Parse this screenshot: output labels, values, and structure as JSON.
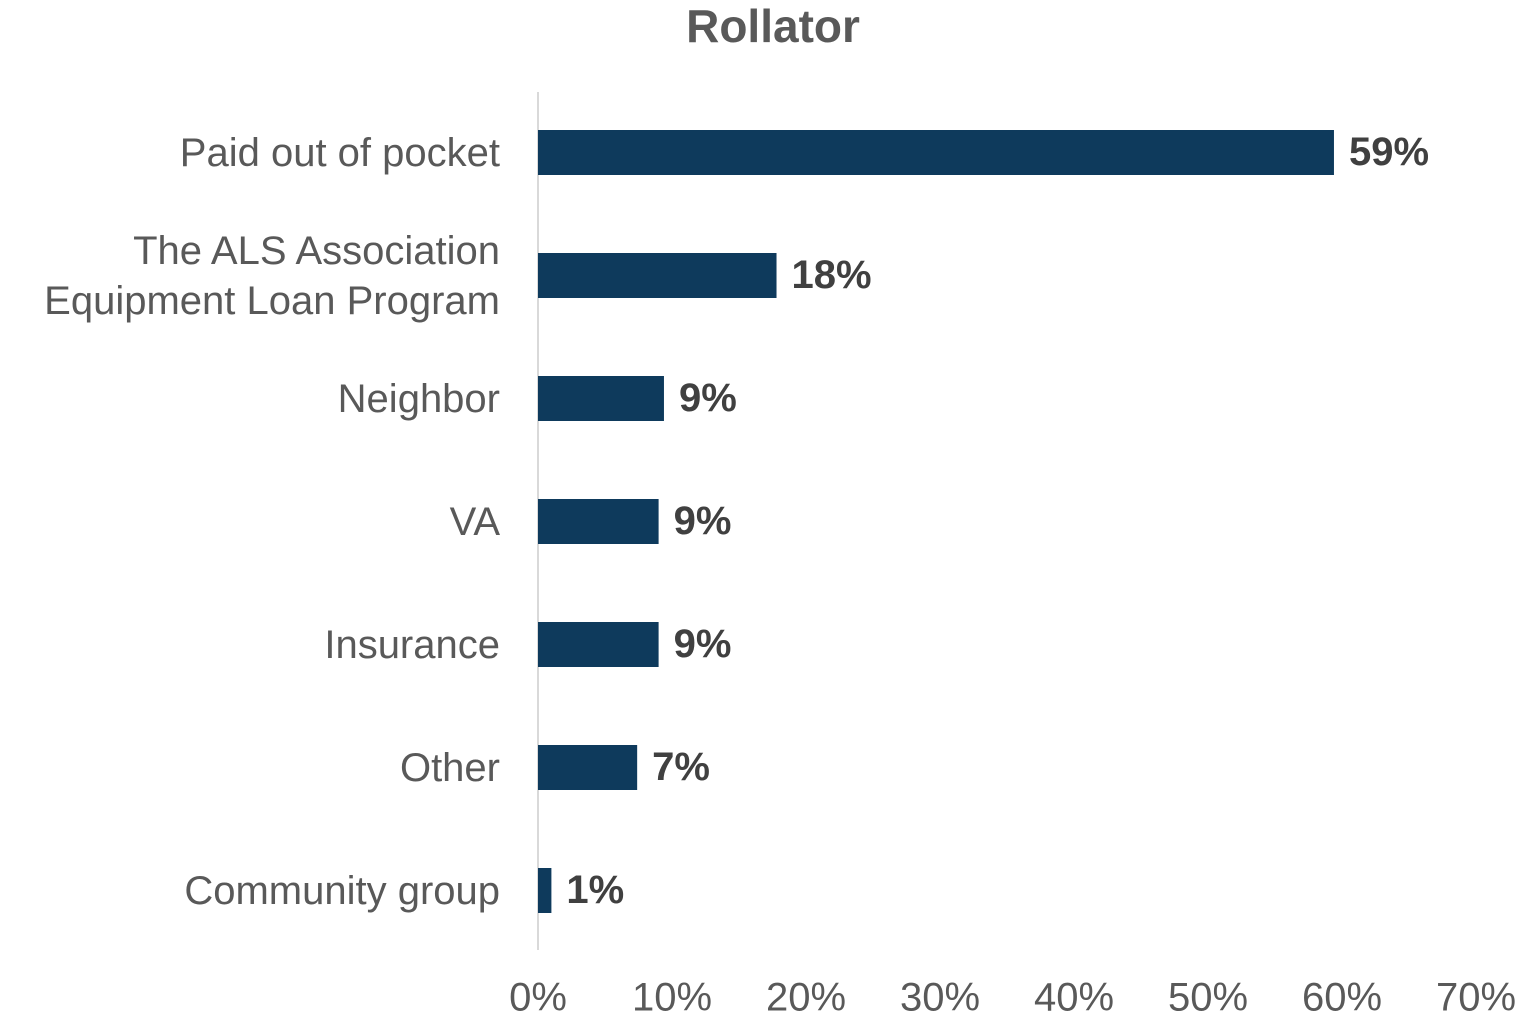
{
  "chart_data": {
    "type": "bar",
    "orientation": "horizontal",
    "title": "Rollator",
    "categories": [
      "Paid out of pocket",
      "The ALS Association Equipment Loan Program",
      "Neighbor",
      "VA",
      "Insurance",
      "Other",
      "Community group"
    ],
    "values": [
      59.4,
      17.8,
      9.4,
      9.0,
      9.0,
      7.4,
      1.0
    ],
    "value_labels": [
      "59%",
      "18%",
      "9%",
      "9%",
      "9%",
      "7%",
      "1%"
    ],
    "color": "#0e3a5c",
    "xlim": [
      0,
      70
    ],
    "xticks": [
      {
        "value": 0,
        "label": "0%"
      },
      {
        "value": 10,
        "label": "10%"
      },
      {
        "value": 20,
        "label": "20%"
      },
      {
        "value": 30,
        "label": "30%"
      },
      {
        "value": 40,
        "label": "40%"
      },
      {
        "value": 50,
        "label": "50%"
      },
      {
        "value": 60,
        "label": "60%"
      },
      {
        "value": 70,
        "label": "70%"
      }
    ],
    "grid": false
  }
}
